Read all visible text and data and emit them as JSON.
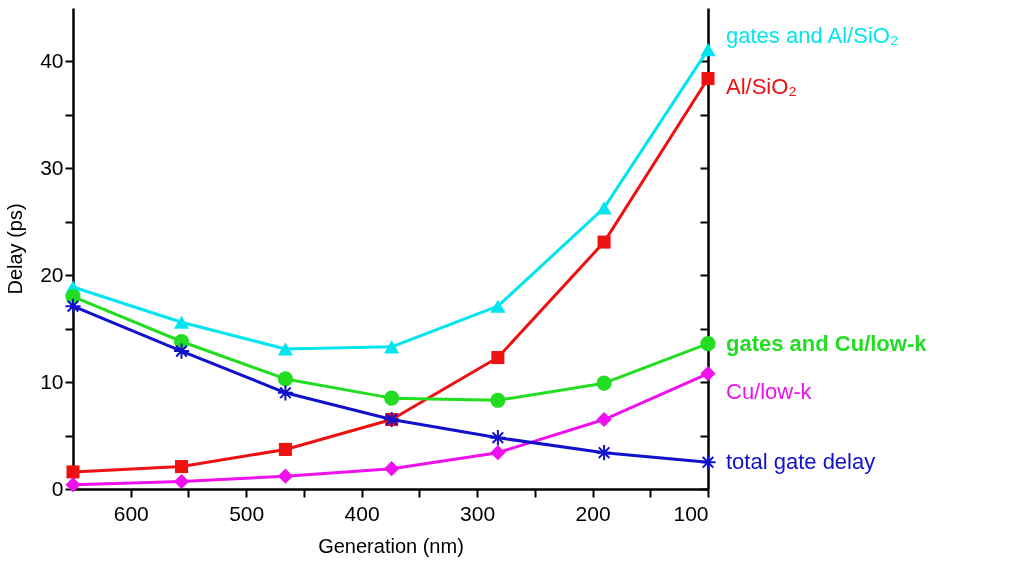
{
  "chart_data": {
    "type": "line",
    "xlabel": "Generation (nm)",
    "ylabel": "Delay (ps)",
    "x": [
      650,
      556,
      466,
      374,
      282,
      190,
      100
    ],
    "series": [
      {
        "name": "gates and Al/SiO₂",
        "color": "#00e5ee",
        "marker": "triangle",
        "values": [
          18.9,
          15.6,
          13.1,
          13.3,
          17.1,
          26.3,
          41.1
        ]
      },
      {
        "name": "Al/SiO₂",
        "color": "#ee1111",
        "marker": "square",
        "values": [
          1.6,
          2.1,
          3.7,
          6.5,
          12.3,
          23.1,
          38.4
        ]
      },
      {
        "name": "gates and Cu/low-k",
        "color": "#22dd22",
        "marker": "circle",
        "values": [
          18.0,
          13.8,
          10.3,
          8.5,
          8.3,
          9.9,
          13.6
        ]
      },
      {
        "name": "Cu/low-k",
        "color": "#ee11ee",
        "marker": "diamond",
        "values": [
          0.4,
          0.7,
          1.2,
          1.9,
          3.4,
          6.5,
          10.8
        ]
      },
      {
        "name": "total gate delay",
        "color": "#1111cc",
        "marker": "cross",
        "values": [
          17.1,
          12.9,
          9.0,
          6.5,
          4.8,
          3.4,
          2.5
        ]
      }
    ],
    "xlim": [
      650,
      100
    ],
    "xticks": [
      600,
      {
        "value": 550,
        "label": null
      },
      500,
      {
        "value": 450,
        "label": null
      },
      400,
      {
        "value": 350,
        "label": null
      },
      300,
      {
        "value": 250,
        "label": null
      },
      200,
      {
        "value": 150,
        "label": null
      },
      100
    ],
    "ylim": [
      0,
      45
    ],
    "yticks": [
      0,
      {
        "value": 5,
        "label": null
      },
      10,
      {
        "value": 15,
        "label": null
      },
      20,
      {
        "value": 25,
        "label": null
      },
      30,
      {
        "value": 35,
        "label": null
      },
      40
    ],
    "legend": false,
    "grid": false
  }
}
